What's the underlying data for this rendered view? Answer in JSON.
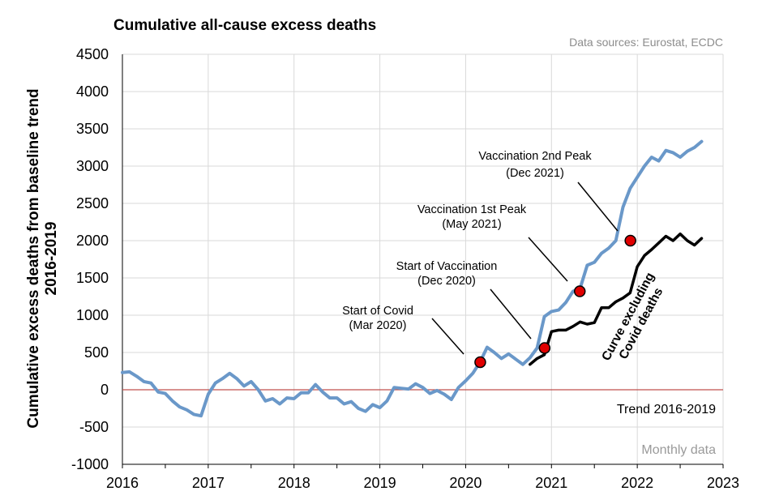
{
  "chart_data": {
    "type": "line",
    "title": "Cumulative all-cause excess deaths",
    "source_note": "Data sources: Eurostat, ECDC",
    "xlabel": "",
    "ylabel_line1": "Cumulative excess deaths from baseline trend",
    "ylabel_line2": "2016-2019",
    "xlim": [
      2016,
      2023
    ],
    "ylim": [
      -1000,
      4500
    ],
    "x_ticks": [
      "2016",
      "2017",
      "2018",
      "2019",
      "2020",
      "2021",
      "2022",
      "2023"
    ],
    "y_ticks": [
      "4500",
      "4000",
      "3500",
      "3000",
      "2500",
      "2000",
      "1500",
      "1000",
      "500",
      "0",
      "-500",
      "-1000"
    ],
    "grid": "vertical+horizontal",
    "baseline": {
      "value": 0,
      "label": "Trend 2016-2019",
      "color": "#c0504d"
    },
    "footnote": "Monthly data",
    "series": [
      {
        "name": "Cumulative all-cause excess deaths",
        "color": "#6a98c9",
        "start": 2016.0,
        "step_months": 1,
        "values": [
          230,
          240,
          180,
          110,
          90,
          -30,
          -50,
          -150,
          -230,
          -270,
          -330,
          -350,
          -60,
          90,
          150,
          220,
          150,
          50,
          110,
          0,
          -150,
          -120,
          -190,
          -110,
          -120,
          -40,
          -40,
          70,
          -30,
          -110,
          -110,
          -190,
          -160,
          -250,
          -290,
          -200,
          -240,
          -150,
          30,
          20,
          10,
          80,
          30,
          -50,
          -10,
          -60,
          -130,
          30,
          120,
          220,
          370,
          570,
          500,
          420,
          480,
          410,
          340,
          430,
          560,
          980,
          1050,
          1070,
          1170,
          1320,
          1360,
          1670,
          1710,
          1830,
          1900,
          2000,
          2450,
          2700,
          2850,
          3000,
          3120,
          3070,
          3210,
          3180,
          3120,
          3200,
          3250,
          3330
        ]
      },
      {
        "name": "Curve excluding Covid deaths",
        "color": "#000000",
        "start": 2020.75,
        "step_months": 1,
        "values": [
          340,
          420,
          470,
          780,
          800,
          800,
          850,
          910,
          880,
          900,
          1100,
          1100,
          1180,
          1230,
          1300,
          1650,
          1800,
          1880,
          1970,
          2060,
          2000,
          2090,
          2000,
          1940,
          2030
        ]
      }
    ],
    "markers": [
      {
        "x": 2020.17,
        "y": 370,
        "label_line1": "Start of Covid",
        "label_line2": "(Mar 2020)"
      },
      {
        "x": 2020.92,
        "y": 560,
        "label_line1": "Start of Vaccination",
        "label_line2": "(Dec 2020)"
      },
      {
        "x": 2021.33,
        "y": 1320,
        "label_line1": "Vaccination 1st Peak",
        "label_line2": "(May 2021)"
      },
      {
        "x": 2021.92,
        "y": 2000,
        "label_line1": "Vaccination 2nd Peak",
        "label_line2": "(Dec 2021)"
      }
    ],
    "marker_color": "#e00000",
    "series_annotation": {
      "line1": "Curve excluding",
      "line2": "Covid deaths"
    }
  }
}
